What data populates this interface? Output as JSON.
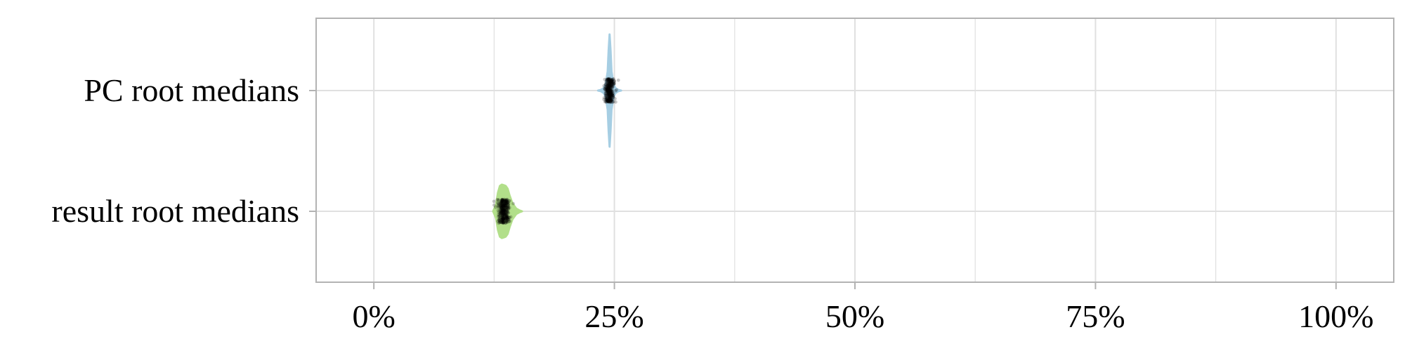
{
  "chart_data": {
    "type": "violin",
    "orientation": "horizontal",
    "title": "",
    "xlabel": "",
    "ylabel": "",
    "xlim": [
      -0.06,
      1.06
    ],
    "x_ticks": [
      0,
      0.25,
      0.5,
      0.75,
      1.0
    ],
    "x_tick_labels": [
      "0%",
      "25%",
      "50%",
      "75%",
      "100%"
    ],
    "grid": true,
    "legend": "none",
    "categories": [
      "PC root medians",
      "result root medians"
    ],
    "series": [
      {
        "category": "PC root medians",
        "color": "#a6cee3",
        "median": 0.245,
        "min": 0.233,
        "max": 0.257,
        "density_x": [
          0.233,
          0.236,
          0.239,
          0.241,
          0.243,
          0.244,
          0.245,
          0.246,
          0.247,
          0.249,
          0.251,
          0.254,
          0.257
        ],
        "density_w": [
          0.0,
          0.012,
          0.045,
          0.12,
          0.34,
          0.72,
          1.0,
          0.72,
          0.34,
          0.12,
          0.045,
          0.012,
          0.0
        ]
      },
      {
        "category": "result root medians",
        "color": "#b2df8a",
        "median": 0.135,
        "min": 0.124,
        "max": 0.154,
        "density_x": [
          0.124,
          0.127,
          0.129,
          0.131,
          0.133,
          0.135,
          0.137,
          0.139,
          0.141,
          0.144,
          0.148,
          0.151,
          0.154
        ],
        "density_w": [
          0.0,
          0.25,
          0.7,
          0.95,
          1.0,
          0.98,
          0.95,
          0.85,
          0.6,
          0.3,
          0.1,
          0.04,
          0.0
        ]
      }
    ],
    "point_color": "#000000"
  },
  "colors": {
    "panel_border": "#b3b3b3",
    "grid": "#e0e0e0",
    "text": "#000000"
  }
}
